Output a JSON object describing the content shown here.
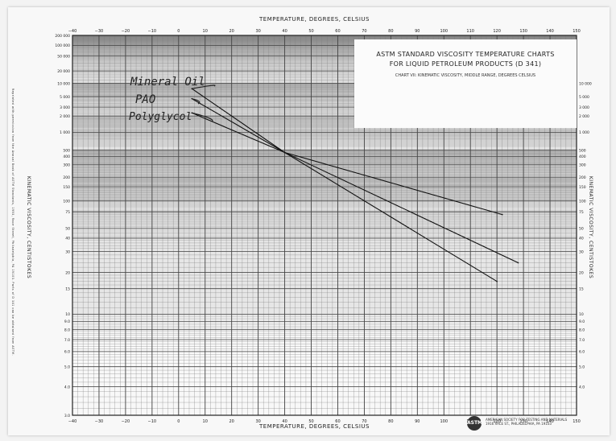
{
  "chart_data": {
    "type": "line",
    "title": "ASTM STANDARD VISCOSITY TEMPERATURE CHARTS",
    "subtitle": "FOR LIQUID PETROLEUM PRODUCTS (D 341)",
    "chart_label": "CHART VII: KINEMATIC VISCOSITY, MIDDLE RANGE, DEGREES CELSIUS",
    "xlabel_top": "TEMPERATURE, DEGREES, CELSIUS",
    "xlabel_bottom": "TEMPERATURE, DEGREES, CELSIUS",
    "ylabel_left": "KINEMATIC VISCOSITY, CENTISTOKES",
    "ylabel_right": "KINEMATIC VISCOSITY, CENTISTOKES",
    "xlim": [
      -40,
      150
    ],
    "x_ticks": [
      -40,
      -30,
      -20,
      -10,
      0,
      10,
      20,
      30,
      40,
      50,
      60,
      70,
      80,
      90,
      100,
      110,
      120,
      130,
      140,
      150
    ],
    "x_tick_labels": [
      "−40",
      "−30",
      "−20",
      "−10",
      "0",
      "10",
      "20",
      "30",
      "40",
      "50",
      "60",
      "70",
      "80",
      "90",
      "100",
      "110",
      "120",
      "130",
      "140",
      "150"
    ],
    "y_scale": "astm-loglog",
    "ylim": [
      3,
      200000
    ],
    "y_ticks_left": [
      "200 000",
      "100 000",
      "50 000",
      "20 000",
      "10 000",
      "5 000",
      "3 000",
      "2 000",
      "1 000",
      "500",
      "400",
      "300",
      "200",
      "150",
      "100",
      "75",
      "50",
      "40",
      "30",
      "20",
      "15",
      "10",
      "9.0",
      "8.0",
      "7.0",
      "6.0",
      "5.0",
      "4.0",
      "3.0"
    ],
    "y_ticks_left_values": [
      200000,
      100000,
      50000,
      20000,
      10000,
      5000,
      3000,
      2000,
      1000,
      500,
      400,
      300,
      200,
      150,
      100,
      75,
      50,
      40,
      30,
      20,
      15,
      10,
      9,
      8,
      7,
      6,
      5,
      4,
      3
    ],
    "y_ticks_right": [
      "10 000",
      "5 000",
      "3 000",
      "2 000",
      "1 000",
      "500",
      "400",
      "300",
      "200",
      "150",
      "100",
      "75",
      "50",
      "40",
      "30",
      "20",
      "15",
      "10",
      "9.0",
      "8.0",
      "7.0",
      "6.0",
      "5.0",
      "4.0"
    ],
    "y_ticks_right_values": [
      10000,
      5000,
      3000,
      2000,
      1000,
      500,
      400,
      300,
      200,
      150,
      100,
      75,
      50,
      40,
      30,
      20,
      15,
      10,
      9,
      8,
      7,
      6,
      5,
      4
    ],
    "grid": true,
    "series": [
      {
        "name": "Mineral Oil",
        "x": [
          5,
          40,
          120
        ],
        "y": [
          7500,
          460,
          17
        ]
      },
      {
        "name": "PAO",
        "x": [
          5,
          40,
          128
        ],
        "y": [
          4500,
          460,
          24
        ]
      },
      {
        "name": "Polyglycol",
        "x": [
          5,
          40,
          122
        ],
        "y": [
          2300,
          460,
          70
        ]
      }
    ]
  },
  "side_text_left": "Reprinted with permission from the Annual Book of ASTM Standards, 1993, Race Street, Philadelphia, PA 19103. Parts of D 341 can be obtained from ASTM.",
  "footer": {
    "logo": "ASTM",
    "line1": "AMERICAN SOCIETY FOR TESTING AND MATERIALS",
    "line2": "1916 RACE ST., PHILADELPHIA, PA 19103"
  }
}
